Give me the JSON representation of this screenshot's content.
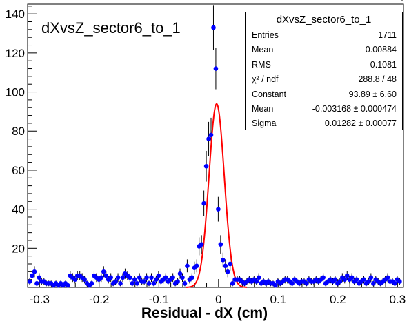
{
  "chart_data": {
    "type": "scatter",
    "title": "dXvsZ_sector6_to_1",
    "xlabel": "Residual - dX (cm)",
    "ylabel": "",
    "xlim": [
      -0.32,
      0.31
    ],
    "ylim": [
      0,
      145
    ],
    "xticks": [
      "-0.3",
      "-0.2",
      "-0.1",
      "0",
      "0.1",
      "0.2",
      "0.3"
    ],
    "yticks": [
      "20",
      "40",
      "60",
      "80",
      "100",
      "120",
      "140"
    ],
    "marker_color": "#0000ff",
    "fit_color": "#ff0000",
    "series": [
      {
        "kind": "histogram-points",
        "x": [
          -0.3165,
          -0.3125,
          -0.3085,
          -0.3045,
          -0.3005,
          -0.2965,
          -0.2925,
          -0.2885,
          -0.2845,
          -0.2805,
          -0.2765,
          -0.2725,
          -0.2685,
          -0.2645,
          -0.2605,
          -0.2565,
          -0.2525,
          -0.2485,
          -0.2445,
          -0.2405,
          -0.2365,
          -0.2325,
          -0.2285,
          -0.2245,
          -0.2205,
          -0.2165,
          -0.2125,
          -0.2085,
          -0.2045,
          -0.2005,
          -0.1965,
          -0.1925,
          -0.1885,
          -0.1845,
          -0.1805,
          -0.1765,
          -0.1725,
          -0.1685,
          -0.1645,
          -0.1605,
          -0.1565,
          -0.1525,
          -0.1485,
          -0.1445,
          -0.1405,
          -0.1365,
          -0.1325,
          -0.1285,
          -0.1245,
          -0.1205,
          -0.1165,
          -0.1125,
          -0.1085,
          -0.1045,
          -0.1005,
          -0.0965,
          -0.0925,
          -0.0885,
          -0.0845,
          -0.0805,
          -0.0765,
          -0.0725,
          -0.0685,
          -0.0645,
          -0.0605,
          -0.0565,
          -0.0525,
          -0.0485,
          -0.0445,
          -0.0405,
          -0.0365,
          -0.0325,
          -0.0285,
          -0.0245,
          -0.0205,
          -0.0165,
          -0.0125,
          -0.0085,
          -0.0045,
          -0.0005,
          0.0035,
          0.0075,
          0.0115,
          0.0155,
          0.0195,
          0.0235,
          0.0275,
          0.0315,
          0.0355,
          0.0395,
          0.0435,
          0.0475,
          0.0515,
          0.0555,
          0.0595,
          0.0635,
          0.0675,
          0.0715,
          0.0755,
          0.0795,
          0.0835,
          0.0875,
          0.0915,
          0.0955,
          0.0995,
          0.1035,
          0.1075,
          0.1115,
          0.1155,
          0.1195,
          0.1235,
          0.1275,
          0.1315,
          0.1355,
          0.1395,
          0.1435,
          0.1475,
          0.1515,
          0.1555,
          0.1595,
          0.1635,
          0.1675,
          0.1715,
          0.1755,
          0.1795,
          0.1835,
          0.1875,
          0.1915,
          0.1955,
          0.1995,
          0.2035,
          0.2075,
          0.2115,
          0.2155,
          0.2195,
          0.2235,
          0.2275,
          0.2315,
          0.2355,
          0.2395,
          0.2435,
          0.2475,
          0.2515,
          0.2555,
          0.2595,
          0.2635,
          0.2675,
          0.2715,
          0.2755,
          0.2795,
          0.2835,
          0.2875,
          0.2915,
          0.2955,
          0.2995,
          0.3035,
          0.3075
        ],
        "y": [
          3,
          6,
          8,
          2,
          5,
          3,
          3,
          2,
          2,
          2,
          1,
          2,
          1,
          2,
          1,
          2,
          1,
          6,
          5,
          4,
          6,
          6,
          5,
          4,
          2,
          1,
          2,
          6,
          5,
          4,
          5,
          8,
          6,
          4,
          5,
          2,
          3,
          5,
          2,
          5,
          7,
          6,
          5,
          2,
          4,
          2,
          5,
          3,
          3,
          5,
          2,
          5,
          2,
          4,
          6,
          3,
          4,
          5,
          3,
          4,
          5,
          2,
          3,
          7,
          5,
          2,
          11,
          4,
          5,
          10,
          11,
          21,
          22,
          43,
          62,
          76,
          78,
          133,
          112,
          40,
          22,
          14,
          11,
          8,
          12,
          2,
          4,
          4,
          4,
          3,
          2,
          3,
          4,
          3,
          4,
          3,
          5,
          2,
          3,
          2,
          3,
          2,
          2,
          1,
          3,
          2,
          3,
          4,
          4,
          3,
          2,
          4,
          3,
          2,
          3,
          3,
          2,
          4,
          3,
          3,
          4,
          3,
          4,
          5,
          2,
          3,
          4,
          3,
          4,
          2,
          3,
          5,
          4,
          6,
          4,
          5,
          3,
          4,
          2,
          3,
          4,
          2,
          3,
          5,
          2,
          4,
          3,
          2,
          3,
          4,
          5,
          3,
          3,
          2,
          4,
          3
        ]
      },
      {
        "kind": "gaussian-fit",
        "constant": 93.89,
        "mean": -0.003168,
        "sigma": 0.01282
      }
    ]
  },
  "stats": {
    "title": "dXvsZ_sector6_to_1",
    "rows": [
      {
        "label": "Entries",
        "value": "1711"
      },
      {
        "label": "Mean",
        "value": "-0.00884"
      },
      {
        "label": "RMS",
        "value": "0.1081"
      },
      {
        "label": "χ² / ndf",
        "value": "288.8 / 48"
      },
      {
        "label": "Constant",
        "value": "93.89 ± 6.60"
      },
      {
        "label": "Mean",
        "value": "-0.003168 ± 0.000474"
      },
      {
        "label": "Sigma",
        "value": "0.01282 ± 0.00077"
      }
    ]
  }
}
